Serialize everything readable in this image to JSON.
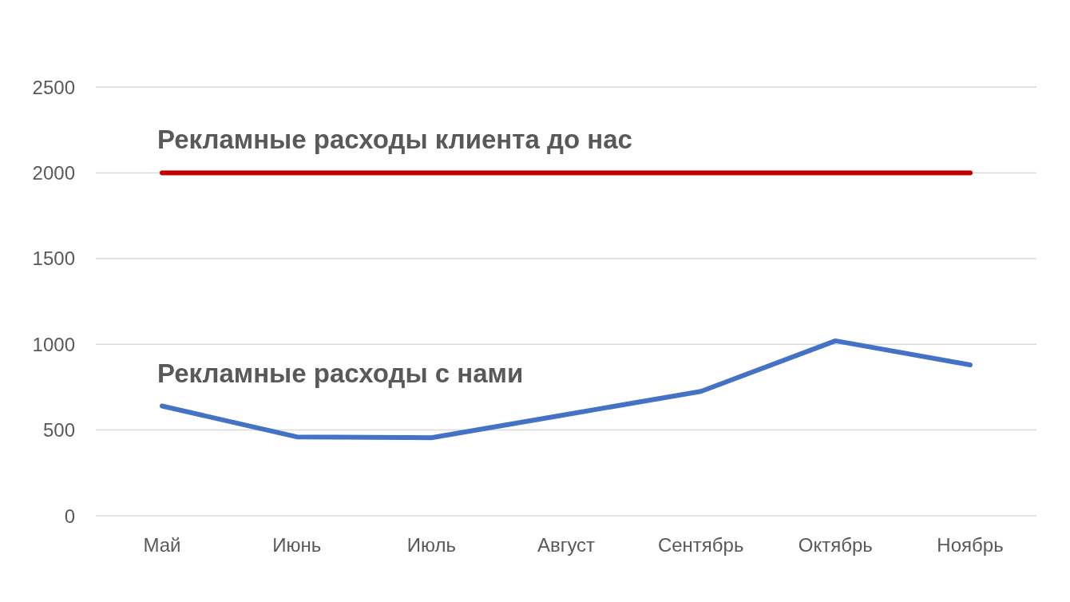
{
  "chart_data": {
    "type": "line",
    "categories": [
      "Май",
      "Июнь",
      "Июль",
      "Август",
      "Сентябрь",
      "Октябрь",
      "Ноябрь"
    ],
    "series": [
      {
        "name": "Рекламные расходы клиента до нас",
        "color": "#c00000",
        "values": [
          2000,
          2000,
          2000,
          2000,
          2000,
          2000,
          2000
        ]
      },
      {
        "name": "Рекламные расходы с нами",
        "color": "#4472c4",
        "values": [
          640,
          460,
          455,
          590,
          725,
          1020,
          880
        ]
      }
    ],
    "ylim": [
      0,
      2500
    ],
    "yticks": [
      0,
      500,
      1000,
      1500,
      2000,
      2500
    ],
    "grid": "y",
    "legend": false,
    "marker": "none",
    "line_style": "solid"
  }
}
